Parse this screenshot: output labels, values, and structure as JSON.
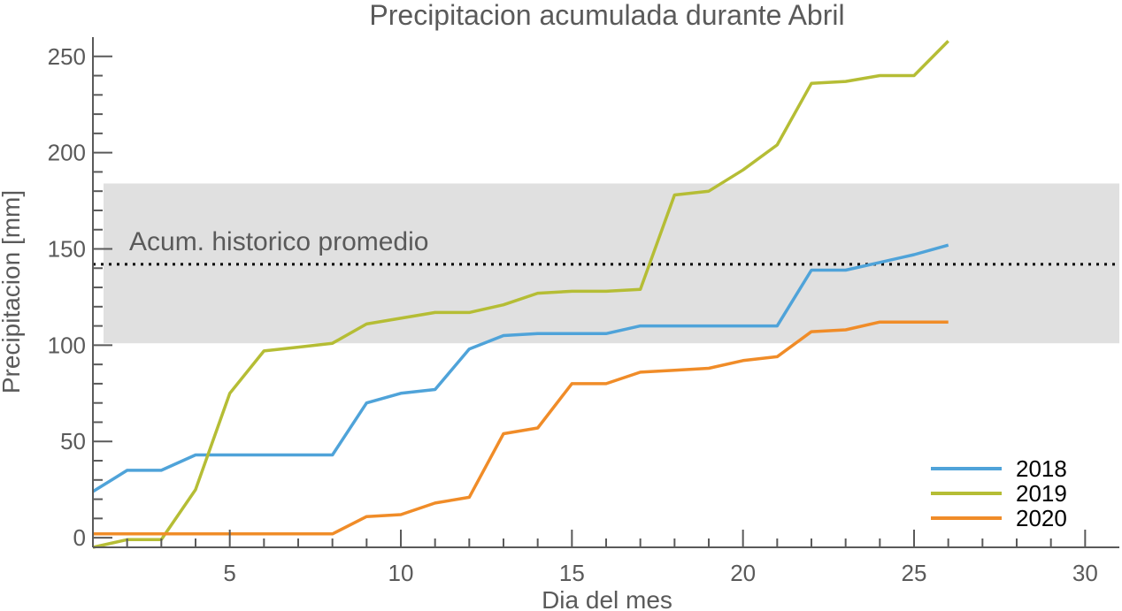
{
  "chart_data": {
    "type": "line",
    "title": "Precipitacion acumulada durante Abril",
    "xlabel": "Dia del mes",
    "ylabel": "Precipitacion [mm]",
    "xlim": [
      1,
      31
    ],
    "ylim": [
      -5,
      260
    ],
    "xticks": [
      5,
      10,
      15,
      20,
      25,
      30
    ],
    "yticks": [
      0,
      50,
      100,
      150,
      200,
      250
    ],
    "grid": false,
    "legend_position": "bottom-right",
    "band": {
      "y_low": 101,
      "y_high": 184,
      "color": "#e0e0e0"
    },
    "reference_line": {
      "y": 142,
      "label": "Acum. historico promedio",
      "color": "#000000"
    },
    "x": [
      1,
      2,
      3,
      4,
      5,
      6,
      7,
      8,
      9,
      10,
      11,
      12,
      13,
      14,
      15,
      16,
      17,
      18,
      19,
      20,
      21,
      22,
      23,
      24,
      25,
      26
    ],
    "series": [
      {
        "name": "2018",
        "color": "#4fa3d9",
        "values": [
          24,
          35,
          35,
          43,
          43,
          43,
          43,
          43,
          70,
          75,
          77,
          98,
          105,
          106,
          106,
          106,
          110,
          110,
          110,
          110,
          110,
          139,
          139,
          143,
          147,
          152
        ]
      },
      {
        "name": "2019",
        "color": "#b5bd35",
        "values": [
          -5,
          -1,
          -1,
          25,
          75,
          97,
          99,
          101,
          111,
          114,
          117,
          117,
          121,
          127,
          128,
          128,
          129,
          178,
          180,
          191,
          204,
          236,
          237,
          240,
          240,
          258
        ]
      },
      {
        "name": "2020",
        "color": "#f08c28",
        "values": [
          2,
          2,
          2,
          2,
          2,
          2,
          2,
          2,
          11,
          12,
          18,
          21,
          54,
          57,
          80,
          80,
          86,
          87,
          88,
          92,
          94,
          107,
          108,
          112,
          112,
          112
        ]
      }
    ]
  }
}
